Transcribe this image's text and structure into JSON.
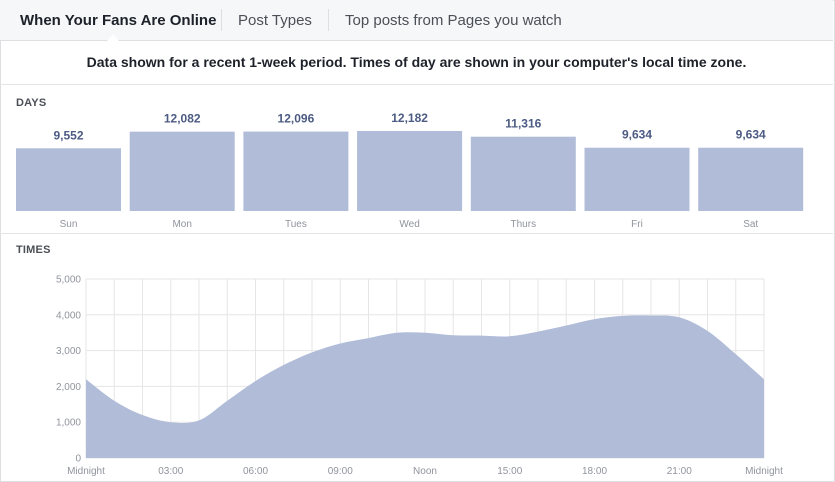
{
  "tabs": [
    {
      "label": "When Your Fans Are Online",
      "active": true
    },
    {
      "label": "Post Types",
      "active": false
    },
    {
      "label": "Top posts from Pages you watch",
      "active": false
    }
  ],
  "notice": "Data shown for a recent 1-week period. Times of day are shown in your computer's local time zone.",
  "colors": {
    "fill": "#b1bcd9",
    "value_label": "#4c5b83",
    "axis_label": "#90949c"
  },
  "chart_data": [
    {
      "type": "bar",
      "title": "DAYS",
      "categories": [
        "Sun",
        "Mon",
        "Tues",
        "Wed",
        "Thurs",
        "Fri",
        "Sat"
      ],
      "values": [
        9552,
        12082,
        12096,
        12182,
        11316,
        9634,
        9634
      ],
      "value_labels": [
        "9,552",
        "12,082",
        "12,096",
        "12,182",
        "11,316",
        "9,634",
        "9,634"
      ]
    },
    {
      "type": "area",
      "title": "TIMES",
      "ylim": [
        0,
        5000
      ],
      "yticks": [
        0,
        1000,
        2000,
        3000,
        4000,
        5000
      ],
      "ytick_labels": [
        "0",
        "1,000",
        "2,000",
        "3,000",
        "4,000",
        "5,000"
      ],
      "xlim": [
        0,
        24
      ],
      "xticks": [
        0,
        3,
        6,
        9,
        12,
        15,
        18,
        21,
        24
      ],
      "xtick_labels": [
        "Midnight",
        "03:00",
        "06:00",
        "09:00",
        "Noon",
        "15:00",
        "18:00",
        "21:00",
        "Midnight"
      ],
      "grid": true,
      "x": [
        0,
        1,
        2,
        3,
        4,
        5,
        6,
        7,
        8,
        9,
        10,
        11,
        12,
        13,
        14,
        15,
        16,
        17,
        18,
        19,
        20,
        21,
        22,
        23,
        24
      ],
      "y": [
        2200,
        1600,
        1200,
        1000,
        1050,
        1600,
        2150,
        2600,
        2950,
        3200,
        3350,
        3500,
        3500,
        3430,
        3420,
        3400,
        3530,
        3700,
        3880,
        3970,
        3980,
        3930,
        3550,
        2900,
        2200
      ]
    }
  ]
}
